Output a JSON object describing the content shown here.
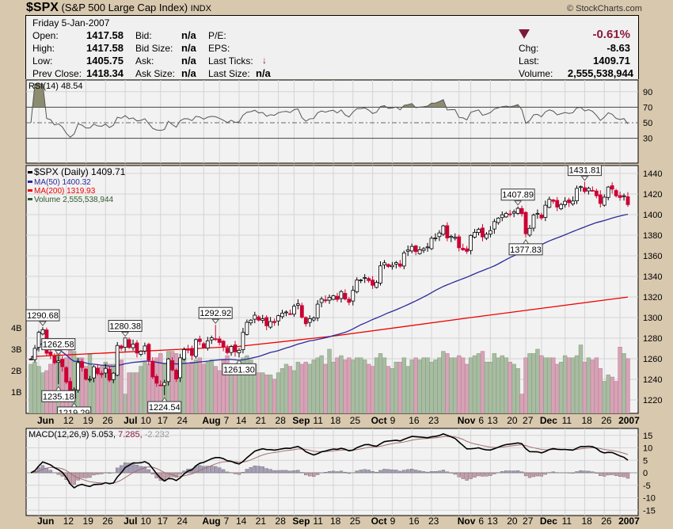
{
  "header": {
    "symbol": "$SPX",
    "name": "(S&P 500 Large Cap Index)",
    "exchange": "INDX",
    "copyright": "© StockCharts.com",
    "date": "Friday  5-Jan-2007",
    "open_label": "Open:",
    "open": "1417.58",
    "high_label": "High:",
    "high": "1417.58",
    "low_label": "Low:",
    "low": "1405.75",
    "prev_label": "Prev Close:",
    "prev": "1418.34",
    "bid_label": "Bid:",
    "bid": "n/a",
    "bidsize_label": "Bid Size:",
    "bidsize": "n/a",
    "ask_label": "Ask:",
    "ask": "n/a",
    "asksize_label": "Ask Size:",
    "asksize": "n/a",
    "pe_label": "P/E:",
    "eps_label": "EPS:",
    "ticks_label": "Last Ticks:",
    "lastsize_label": "Last Size:",
    "lastsize": "n/a",
    "pct": "-0.61%",
    "chg_label": "Chg:",
    "chg": "-8.63",
    "last_label": "Last:",
    "last": "1409.71",
    "vol_label": "Volume:",
    "vol": "2,555,538,944"
  },
  "colors": {
    "up_fill": "#ffffff",
    "down_fill": "#cc0033",
    "ma50": "#2b2b9c",
    "ma200": "#ee0000",
    "vol_up": "#a8bca2",
    "vol_down": "#d6a3b6",
    "down_arrow": "#7a1a35",
    "rsi_fill": "#8c8c70"
  },
  "chart_data": {
    "type": "candlestick",
    "legend": {
      "rsi": "RSI(14) 48.54",
      "price": "$SPX (Daily) 1409.71",
      "ma50": "MA(50) 1400.32",
      "ma200": "MA(200) 1319.93",
      "volume": "Volume 2,555,538,944",
      "macd_name": "MACD(12,26,9)",
      "macd": "5.053,",
      "signal": "7.285,",
      "hist": "-2.232"
    },
    "price_ticks": [
      1440,
      1420,
      1400,
      1380,
      1360,
      1340,
      1320,
      1300,
      1280,
      1260,
      1240,
      1220
    ],
    "volume_ticks": [
      "1B",
      "2B",
      "3B",
      "4B"
    ],
    "rsi_ticks": [
      90,
      70,
      50,
      30
    ],
    "macd_ticks": [
      15,
      10,
      5,
      0,
      -5,
      -10,
      -15
    ],
    "x_ticks": [
      {
        "label": "Jun",
        "date": "2006-06-01",
        "major": true
      },
      {
        "label": "12",
        "date": "2006-06-12"
      },
      {
        "label": "19",
        "date": "2006-06-19"
      },
      {
        "label": "26",
        "date": "2006-06-26"
      },
      {
        "label": "Jul",
        "date": "2006-07-03",
        "major": true
      },
      {
        "label": "10",
        "date": "2006-07-10"
      },
      {
        "label": "17",
        "date": "2006-07-17"
      },
      {
        "label": "24",
        "date": "2006-07-24"
      },
      {
        "label": "Aug",
        "date": "2006-08-01",
        "major": true
      },
      {
        "label": "7",
        "date": "2006-08-07"
      },
      {
        "label": "14",
        "date": "2006-08-14"
      },
      {
        "label": "21",
        "date": "2006-08-21"
      },
      {
        "label": "28",
        "date": "2006-08-28"
      },
      {
        "label": "Sep",
        "date": "2006-09-01",
        "major": true
      },
      {
        "label": "11",
        "date": "2006-09-11"
      },
      {
        "label": "18",
        "date": "2006-09-18"
      },
      {
        "label": "25",
        "date": "2006-09-25"
      },
      {
        "label": "Oct",
        "date": "2006-10-02",
        "major": true
      },
      {
        "label": "9",
        "date": "2006-10-09"
      },
      {
        "label": "16",
        "date": "2006-10-16"
      },
      {
        "label": "23",
        "date": "2006-10-23"
      },
      {
        "label": "Nov",
        "date": "2006-11-01",
        "major": true
      },
      {
        "label": "6",
        "date": "2006-11-06"
      },
      {
        "label": "13",
        "date": "2006-11-13"
      },
      {
        "label": "20",
        "date": "2006-11-20"
      },
      {
        "label": "27",
        "date": "2006-11-27"
      },
      {
        "label": "Dec",
        "date": "2006-12-01",
        "major": true
      },
      {
        "label": "11",
        "date": "2006-12-11"
      },
      {
        "label": "18",
        "date": "2006-12-18"
      },
      {
        "label": "26",
        "date": "2006-12-26"
      },
      {
        "label": "2007",
        "date": "2007-01-03",
        "major": true
      }
    ],
    "annotations": [
      {
        "date": "2006-06-02",
        "value": 1290.68,
        "kind": "high"
      },
      {
        "date": "2006-06-08",
        "value": 1262.58,
        "kind": "high"
      },
      {
        "date": "2006-06-08",
        "value": 1235.18,
        "kind": "low"
      },
      {
        "date": "2006-06-14",
        "value": 1219.29,
        "kind": "low"
      },
      {
        "date": "2006-07-03",
        "value": 1280.38,
        "kind": "high"
      },
      {
        "date": "2006-07-18",
        "value": 1224.54,
        "kind": "low"
      },
      {
        "date": "2006-08-04",
        "value": 1292.92,
        "kind": "high"
      },
      {
        "date": "2006-08-14",
        "value": 1261.3,
        "kind": "low"
      },
      {
        "date": "2006-11-22",
        "value": 1407.89,
        "kind": "high"
      },
      {
        "date": "2006-11-27",
        "value": 1377.83,
        "kind": "low"
      },
      {
        "date": "2006-12-18",
        "value": 1431.81,
        "kind": "high"
      }
    ],
    "ma200": [
      {
        "date": "2006-05-30",
        "value": 1262
      },
      {
        "date": "2006-08-14",
        "value": 1272
      },
      {
        "date": "2006-09-18",
        "value": 1282
      },
      {
        "date": "2006-11-06",
        "value": 1300
      },
      {
        "date": "2007-01-05",
        "value": 1319.93
      }
    ],
    "months": [
      {
        "month": "2006-05",
        "days": [
          30,
          31
        ],
        "close": [
          1259.7,
          1270.1
        ],
        "volume_b": [
          2.3,
          2.4
        ]
      },
      {
        "month": "2006-06",
        "days": [
          1,
          2,
          5,
          6,
          7,
          8,
          9,
          12,
          13,
          14,
          15,
          16,
          19,
          20,
          21,
          22,
          23,
          26,
          27,
          28,
          29,
          30
        ],
        "close": [
          1285.7,
          1288.2,
          1265.3,
          1263.9,
          1256.2,
          1257.9,
          1252.3,
          1237.4,
          1223.7,
          1230.0,
          1256.2,
          1251.5,
          1240.1,
          1240.1,
          1252.2,
          1245.6,
          1244.5,
          1250.6,
          1239.2,
          1246.0,
          1272.9,
          1270.2
        ],
        "volume_b": [
          2.2,
          1.9,
          2.0,
          2.3,
          2.4,
          3.0,
          2.4,
          2.6,
          3.0,
          2.9,
          2.6,
          2.6,
          2.2,
          2.8,
          2.0,
          2.0,
          2.2,
          2.4,
          2.3,
          2.3,
          2.8,
          2.5
        ]
      },
      {
        "month": "2006-07",
        "days": [
          3,
          5,
          6,
          7,
          10,
          11,
          12,
          13,
          14,
          17,
          18,
          19,
          20,
          21,
          24,
          25,
          26,
          27,
          28,
          31
        ],
        "close": [
          1280.2,
          1270.9,
          1274.1,
          1265.5,
          1267.3,
          1272.4,
          1258.6,
          1242.3,
          1236.2,
          1234.5,
          1236.9,
          1259.8,
          1249.1,
          1240.3,
          1260.9,
          1268.9,
          1268.4,
          1263.2,
          1278.6,
          1276.7
        ],
        "volume_b": [
          0.9,
          1.9,
          1.9,
          1.9,
          2.2,
          2.4,
          2.3,
          2.4,
          2.6,
          2.8,
          2.3,
          2.9,
          2.9,
          2.8,
          2.4,
          2.6,
          2.3,
          2.4,
          2.5,
          2.6
        ]
      },
      {
        "month": "2006-08",
        "days": [
          1,
          2,
          3,
          4,
          7,
          8,
          9,
          10,
          11,
          14,
          15,
          16,
          17,
          18,
          21,
          22,
          23,
          24,
          25,
          28,
          29,
          30,
          31
        ],
        "close": [
          1270.9,
          1277.4,
          1280.3,
          1279.4,
          1275.8,
          1271.5,
          1265.9,
          1271.8,
          1266.7,
          1268.2,
          1285.6,
          1295.4,
          1297.5,
          1302.3,
          1297.5,
          1298.8,
          1292.0,
          1296.1,
          1295.1,
          1301.8,
          1304.3,
          1305.4,
          1303.8
        ],
        "volume_b": [
          2.3,
          2.4,
          2.5,
          2.2,
          2.0,
          2.5,
          2.7,
          2.3,
          2.0,
          2.4,
          2.6,
          2.7,
          2.5,
          2.3,
          1.9,
          1.9,
          1.8,
          1.8,
          1.6,
          1.9,
          2.1,
          2.3,
          2.2
        ]
      },
      {
        "month": "2006-09",
        "days": [
          1,
          5,
          6,
          7,
          8,
          11,
          12,
          13,
          14,
          15,
          18,
          19,
          20,
          21,
          22,
          25,
          26,
          27,
          28,
          29
        ],
        "close": [
          1311.0,
          1313.3,
          1300.3,
          1294.0,
          1298.9,
          1299.5,
          1313.0,
          1318.1,
          1316.3,
          1319.7,
          1321.2,
          1317.6,
          1325.2,
          1318.0,
          1314.8,
          1326.4,
          1336.4,
          1336.6,
          1338.9,
          1335.9
        ],
        "volume_b": [
          2.0,
          2.4,
          2.3,
          2.4,
          2.3,
          2.5,
          2.6,
          2.7,
          2.3,
          3.0,
          2.4,
          2.6,
          2.7,
          2.5,
          2.6,
          2.5,
          2.6,
          2.6,
          2.5,
          2.3
        ]
      },
      {
        "month": "2006-10",
        "days": [
          2,
          3,
          4,
          5,
          6,
          9,
          10,
          11,
          12,
          13,
          16,
          17,
          18,
          19,
          20,
          23,
          24,
          25,
          26,
          27,
          30,
          31
        ],
        "close": [
          1331.3,
          1334.1,
          1350.2,
          1353.2,
          1349.6,
          1350.7,
          1353.4,
          1349.9,
          1362.8,
          1365.6,
          1369.1,
          1364.1,
          1365.8,
          1366.9,
          1368.6,
          1377.0,
          1377.4,
          1382.2,
          1389.1,
          1377.3,
          1377.9,
          1377.9
        ],
        "volume_b": [
          2.2,
          2.6,
          2.8,
          2.6,
          2.2,
          2.1,
          2.4,
          2.4,
          2.6,
          2.2,
          2.5,
          2.6,
          2.5,
          2.6,
          2.6,
          2.4,
          2.5,
          2.6,
          2.9,
          2.8,
          2.6,
          2.6
        ]
      },
      {
        "month": "2006-11",
        "days": [
          1,
          2,
          3,
          6,
          7,
          8,
          9,
          10,
          13,
          14,
          15,
          16,
          17,
          20,
          21,
          22,
          24,
          27,
          28,
          29,
          30
        ],
        "close": [
          1367.8,
          1367.3,
          1364.3,
          1379.8,
          1382.8,
          1385.7,
          1378.3,
          1380.9,
          1384.4,
          1393.2,
          1396.6,
          1399.8,
          1401.2,
          1400.5,
          1402.8,
          1406.1,
          1400.9,
          1381.4,
          1386.7,
          1399.5,
          1400.6
        ],
        "volume_b": [
          2.7,
          2.6,
          2.3,
          2.6,
          2.7,
          2.8,
          2.9,
          2.4,
          2.4,
          2.8,
          2.6,
          2.7,
          2.6,
          2.4,
          2.3,
          2.1,
          0.9,
          2.6,
          2.8,
          2.8,
          3.0
        ]
      },
      {
        "month": "2006-12",
        "days": [
          1,
          4,
          5,
          6,
          7,
          8,
          11,
          12,
          13,
          14,
          15,
          18,
          19,
          20,
          21,
          22,
          26,
          27,
          28,
          29
        ],
        "close": [
          1396.7,
          1409.1,
          1414.8,
          1412.9,
          1407.3,
          1409.8,
          1413.0,
          1411.6,
          1413.2,
          1425.5,
          1427.1,
          1422.5,
          1425.5,
          1423.5,
          1418.3,
          1410.8,
          1416.9,
          1426.8,
          1424.7,
          1418.3
        ],
        "volume_b": [
          2.7,
          2.6,
          2.6,
          2.6,
          2.3,
          2.4,
          2.7,
          2.6,
          2.6,
          2.7,
          3.2,
          2.4,
          2.6,
          2.5,
          2.6,
          2.1,
          1.5,
          1.8,
          1.7,
          1.5
        ]
      },
      {
        "month": "2007-01",
        "days": [
          3,
          4,
          5
        ],
        "close": [
          1416.6,
          1418.3,
          1409.7
        ],
        "volume_b": [
          3.1,
          2.8,
          2.56
        ]
      }
    ]
  }
}
